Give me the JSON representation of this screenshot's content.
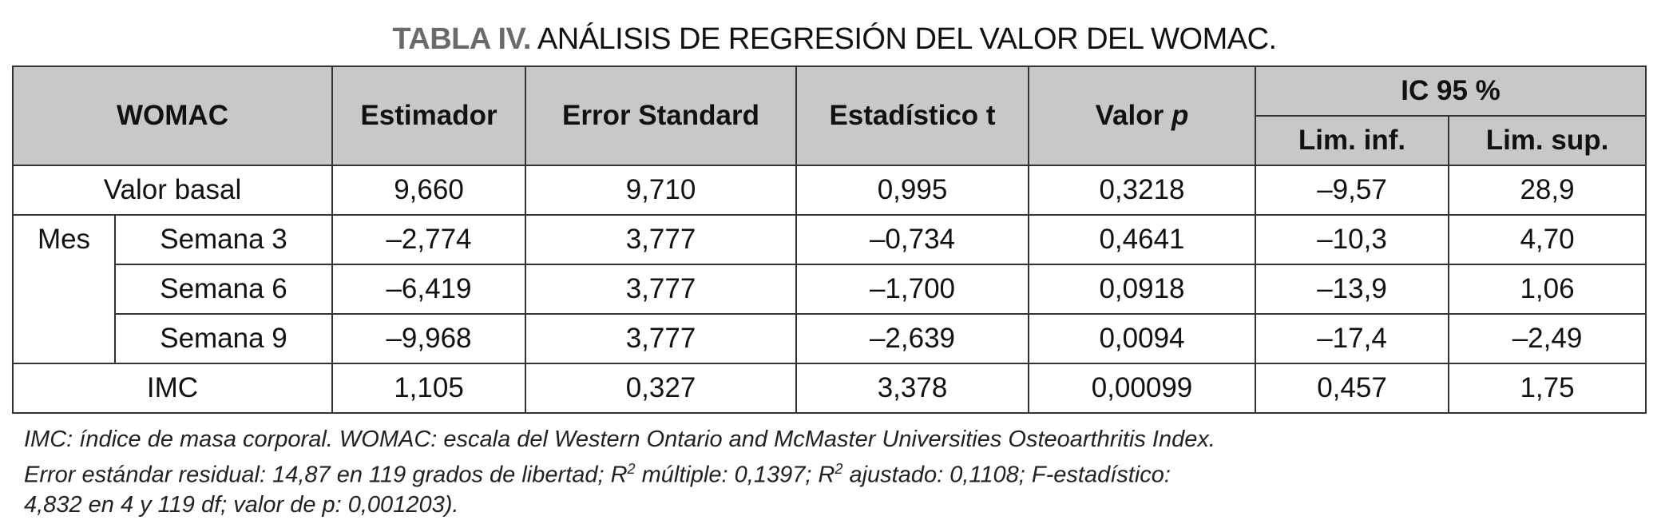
{
  "title": {
    "lead": "TABLA IV.",
    "rest": "ANÁLISIS DE REGRESIÓN DEL VALOR DEL WOMAC."
  },
  "header": {
    "womac": "WOMAC",
    "estimador": "Estimador",
    "error": "Error Standard",
    "estadistico": "Estadístico t",
    "valor_p_prefix": "Valor",
    "valor_p_italic": "p",
    "ic": "IC 95 %",
    "lim_inf": "Lim. inf.",
    "lim_sup": "Lim. sup."
  },
  "group_label": "Mes",
  "rows": [
    {
      "label": "Valor basal",
      "values": [
        "9,660",
        "9,710",
        "0,995",
        "0,3218",
        "–9,57",
        "28,9"
      ]
    },
    {
      "label": "Semana 3",
      "values": [
        "–2,774",
        "3,777",
        "–0,734",
        "0,4641",
        "–10,3",
        "4,70"
      ]
    },
    {
      "label": "Semana 6",
      "values": [
        "–6,419",
        "3,777",
        "–1,700",
        "0,0918",
        "–13,9",
        "1,06"
      ]
    },
    {
      "label": "Semana 9",
      "values": [
        "–9,968",
        "3,777",
        "–2,639",
        "0,0094",
        "–17,4",
        "–2,49"
      ]
    },
    {
      "label": "IMC",
      "values": [
        "1,105",
        "0,327",
        "3,378",
        "0,00099",
        "0,457",
        "1,75"
      ]
    }
  ],
  "footnote": {
    "line1": "IMC: índice de masa corporal. WOMAC: escala del Western Ontario and McMaster Universities Osteoarthritis Index.",
    "line2a": "Error estándar residual: 14,87 en 119 grados de libertad; R",
    "sup": "2",
    "line2b": " múltiple: 0,1397; R",
    "line2c": " ajustado: 0,1108; F-estadístico:",
    "line3": "4,832 en 4 y 119 df; valor de p: 0,001203)."
  }
}
